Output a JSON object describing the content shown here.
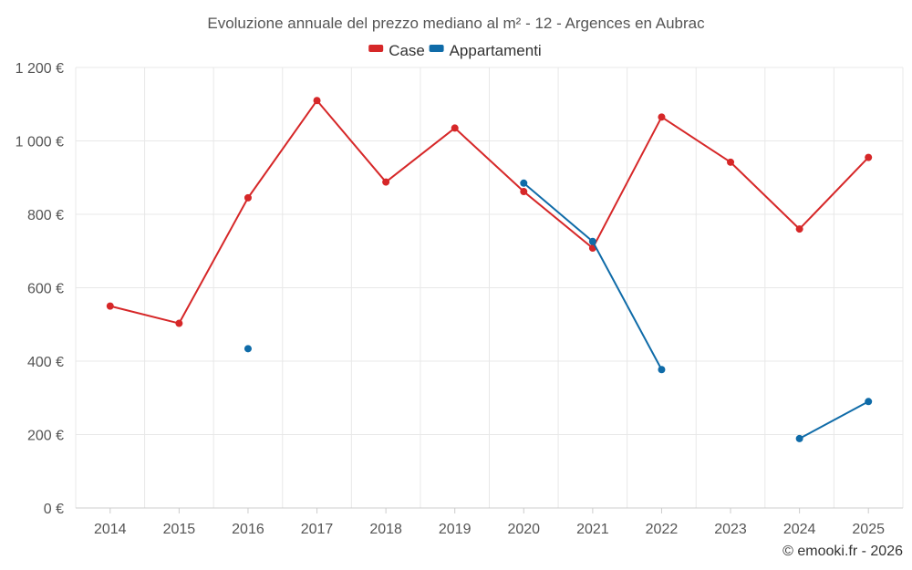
{
  "chart_data": {
    "type": "line",
    "title": "Evoluzione annuale del prezzo mediano al m² - 12 - Argences en Aubrac",
    "categories": [
      "2014",
      "2015",
      "2016",
      "2017",
      "2018",
      "2019",
      "2020",
      "2021",
      "2022",
      "2023",
      "2024",
      "2025"
    ],
    "series": [
      {
        "name": "Case",
        "color": "#d62728",
        "values": [
          550,
          503,
          845,
          1110,
          888,
          1035,
          862,
          708,
          1065,
          942,
          760,
          955
        ]
      },
      {
        "name": "Appartamenti",
        "color": "#0f6ba8",
        "values": [
          null,
          null,
          434,
          null,
          null,
          null,
          885,
          726,
          377,
          null,
          189,
          290
        ]
      }
    ],
    "ylim": [
      0,
      1200
    ],
    "yticks": [
      0,
      200,
      400,
      600,
      800,
      1000,
      1200
    ],
    "ytick_labels": [
      "0 €",
      "200 €",
      "400 €",
      "600 €",
      "800 €",
      "1 000 €",
      "1 200 €"
    ],
    "xlabel": "",
    "ylabel": "",
    "grid": true,
    "legend_position": "top-center"
  },
  "credit": "© emooki.fr - 2026"
}
